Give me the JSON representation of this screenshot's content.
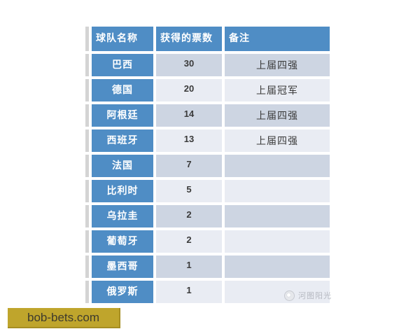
{
  "chart_data": {
    "type": "table",
    "title": "",
    "columns": [
      "球队名称",
      "获得的票数",
      "备注"
    ],
    "rows": [
      [
        "巴西",
        30,
        "上届四强"
      ],
      [
        "德国",
        20,
        "上届冠军"
      ],
      [
        "阿根廷",
        14,
        "上届四强"
      ],
      [
        "西班牙",
        13,
        "上届四强"
      ],
      [
        "法国",
        7,
        ""
      ],
      [
        "比利时",
        5,
        ""
      ],
      [
        "乌拉圭",
        2,
        ""
      ],
      [
        "葡萄牙",
        2,
        ""
      ],
      [
        "墨西哥",
        1,
        ""
      ],
      [
        "俄罗斯",
        1,
        ""
      ]
    ],
    "layout_hints": {
      "header_style": "blue banded header and first column, white bold text",
      "row_banding": "alternating light blue-gray rows"
    }
  },
  "colors": {
    "header_blue": "#4f8dc5",
    "row_odd": "#cdd5e2",
    "row_even": "#e9ecf3",
    "edge_gray": "#d4d4d4",
    "banner_gold": "#bfa52c",
    "banner_text": "#3e3b2d",
    "watermark_gray": "#b5b8c0"
  },
  "watermark": {
    "icon": "logo-circle-icon",
    "text": "河图阳光"
  },
  "banner": {
    "text": "bob-bets.com"
  }
}
